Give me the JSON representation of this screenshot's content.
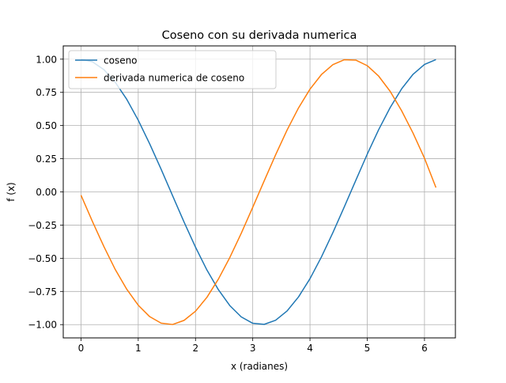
{
  "chart_data": {
    "type": "line",
    "title": "Coseno con su derivada numerica",
    "xlabel": "x (radianes)",
    "ylabel": "f (x)",
    "xlim": [
      -0.31,
      6.54
    ],
    "ylim": [
      -1.1,
      1.1
    ],
    "xticks": [
      0,
      1,
      2,
      3,
      4,
      5,
      6
    ],
    "xtick_labels": [
      "0",
      "1",
      "2",
      "3",
      "4",
      "5",
      "6"
    ],
    "yticks": [
      -1.0,
      -0.75,
      -0.5,
      -0.25,
      0.0,
      0.25,
      0.5,
      0.75,
      1.0
    ],
    "ytick_labels": [
      "−1.00",
      "−0.75",
      "−0.50",
      "−0.25",
      "0.00",
      "0.25",
      "0.50",
      "0.75",
      "1.00"
    ],
    "grid": true,
    "legend_position": "top-left",
    "series": [
      {
        "name": "coseno",
        "color": "#1f77b4",
        "x": [
          0.0,
          0.2,
          0.4,
          0.6,
          0.8,
          1.0,
          1.2,
          1.4,
          1.6,
          1.8,
          2.0,
          2.2,
          2.4,
          2.6,
          2.8,
          3.0,
          3.2,
          3.4,
          3.6,
          3.8,
          4.0,
          4.2,
          4.4,
          4.6,
          4.8,
          5.0,
          5.2,
          5.4,
          5.6,
          5.8,
          6.0,
          6.2
        ],
        "y": [
          1.0,
          0.98,
          0.921,
          0.825,
          0.697,
          0.54,
          0.362,
          0.17,
          -0.029,
          -0.227,
          -0.416,
          -0.589,
          -0.737,
          -0.857,
          -0.942,
          -0.99,
          -0.998,
          -0.967,
          -0.897,
          -0.791,
          -0.654,
          -0.49,
          -0.307,
          -0.112,
          0.087,
          0.284,
          0.469,
          0.635,
          0.776,
          0.886,
          0.96,
          0.997
        ]
      },
      {
        "name": "derivada numerica de coseno",
        "color": "#ff7f0e",
        "x": [
          0.0,
          0.2,
          0.4,
          0.6,
          0.8,
          1.0,
          1.2,
          1.4,
          1.6,
          1.8,
          2.0,
          2.2,
          2.4,
          2.6,
          2.8,
          3.0,
          3.2,
          3.4,
          3.6,
          3.8,
          4.0,
          4.2,
          4.4,
          4.6,
          4.8,
          5.0,
          5.2,
          5.4,
          5.6,
          5.8,
          6.0,
          6.2
        ],
        "y": [
          -0.025,
          -0.223,
          -0.412,
          -0.586,
          -0.734,
          -0.854,
          -0.94,
          -0.989,
          -0.999,
          -0.968,
          -0.899,
          -0.794,
          -0.657,
          -0.494,
          -0.311,
          -0.116,
          0.083,
          0.28,
          0.466,
          0.633,
          0.774,
          0.884,
          0.959,
          0.996,
          0.993,
          0.951,
          0.872,
          0.758,
          0.612,
          0.443,
          0.254,
          0.033
        ]
      }
    ]
  }
}
